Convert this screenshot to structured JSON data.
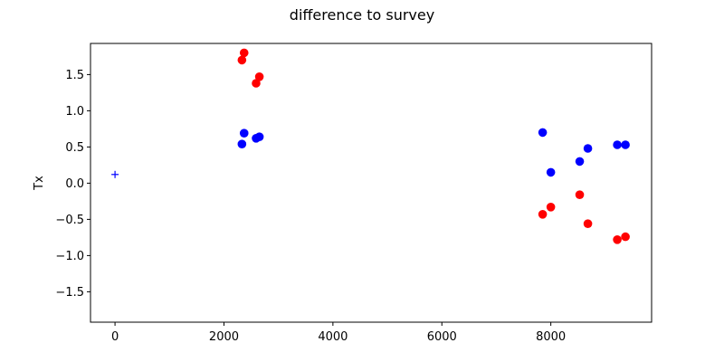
{
  "chart_data": {
    "type": "scatter",
    "title": "difference to survey",
    "xlabel": "",
    "ylabel": "Tx",
    "xlim": [
      -450,
      9850
    ],
    "ylim": [
      -1.92,
      1.93
    ],
    "x_ticks": [
      0,
      2000,
      4000,
      6000,
      8000
    ],
    "x_tick_labels": [
      "0",
      "2000",
      "4000",
      "6000",
      "8000"
    ],
    "y_ticks": [
      -1.5,
      -1.0,
      -0.5,
      0.0,
      0.5,
      1.0,
      1.5
    ],
    "y_tick_labels": [
      "−1.5",
      "−1.0",
      "−0.5",
      "0.0",
      "0.5",
      "1.0",
      "1.5"
    ],
    "grid": false,
    "series": [
      {
        "color": "#ff0000",
        "marker": "circle",
        "points": [
          {
            "x": 2330,
            "y": 1.7
          },
          {
            "x": 2370,
            "y": 1.8
          },
          {
            "x": 2590,
            "y": 1.38
          },
          {
            "x": 2650,
            "y": 1.47
          },
          {
            "x": 7850,
            "y": -0.43
          },
          {
            "x": 8000,
            "y": -0.33
          },
          {
            "x": 8530,
            "y": -0.16
          },
          {
            "x": 8680,
            "y": -0.56
          },
          {
            "x": 9220,
            "y": -0.78
          },
          {
            "x": 9370,
            "y": -0.74
          }
        ]
      },
      {
        "color": "#0000ff",
        "marker": "circle",
        "points": [
          {
            "x": 2330,
            "y": 0.54
          },
          {
            "x": 2370,
            "y": 0.69
          },
          {
            "x": 2590,
            "y": 0.62
          },
          {
            "x": 2650,
            "y": 0.64
          },
          {
            "x": 7850,
            "y": 0.7
          },
          {
            "x": 8000,
            "y": 0.15
          },
          {
            "x": 8530,
            "y": 0.3
          },
          {
            "x": 8680,
            "y": 0.48
          },
          {
            "x": 9220,
            "y": 0.53
          },
          {
            "x": 9370,
            "y": 0.53
          }
        ]
      },
      {
        "color": "#0000ff",
        "marker": "plus",
        "points": [
          {
            "x": 0,
            "y": 0.12
          }
        ]
      }
    ]
  }
}
